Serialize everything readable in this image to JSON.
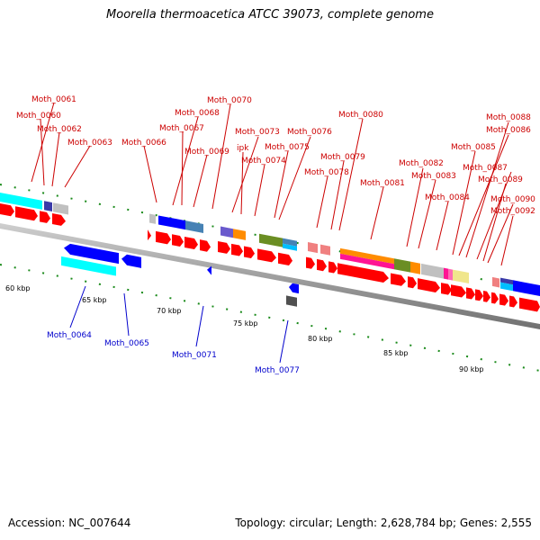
{
  "title": "Moorella thermoacetica ATCC 39073, complete genome",
  "footer": {
    "accession": "Accession: NC_007644",
    "summary": "Topology: circular; Length: 2,628,784 bp; Genes: 2,555"
  },
  "scale": {
    "unit": "kbp",
    "ticks": [
      "60 kbp",
      "65 kbp",
      "70 kbp",
      "75 kbp",
      "80 kbp",
      "85 kbp",
      "90 kbp"
    ]
  },
  "labels_top": [
    "Moth_0061",
    "Moth_0060",
    "Moth_0062",
    "Moth_0063",
    "Moth_0066",
    "Moth_0068",
    "Moth_0067",
    "Moth_0070",
    "Moth_0069",
    "Moth_0073",
    "ipk",
    "Moth_0074",
    "Moth_0076",
    "Moth_0075",
    "Moth_0080",
    "Moth_0079",
    "Moth_0078",
    "Moth_0081",
    "Moth_0082",
    "Moth_0083",
    "Moth_0084",
    "Moth_0088",
    "Moth_0086",
    "Moth_0085",
    "Moth_0087",
    "Moth_0089",
    "Moth_0090",
    "Moth_0092"
  ],
  "labels_bottom": [
    "Moth_0064",
    "Moth_0065",
    "Moth_0071",
    "Moth_0077"
  ],
  "colors": {
    "top_label": "#cc0000",
    "bottom_label": "#0000cc",
    "tick": "#1a8a1a",
    "backbone": "#888888",
    "gene_forward": "#ff0000",
    "gene_reverse": "#0000ff"
  }
}
